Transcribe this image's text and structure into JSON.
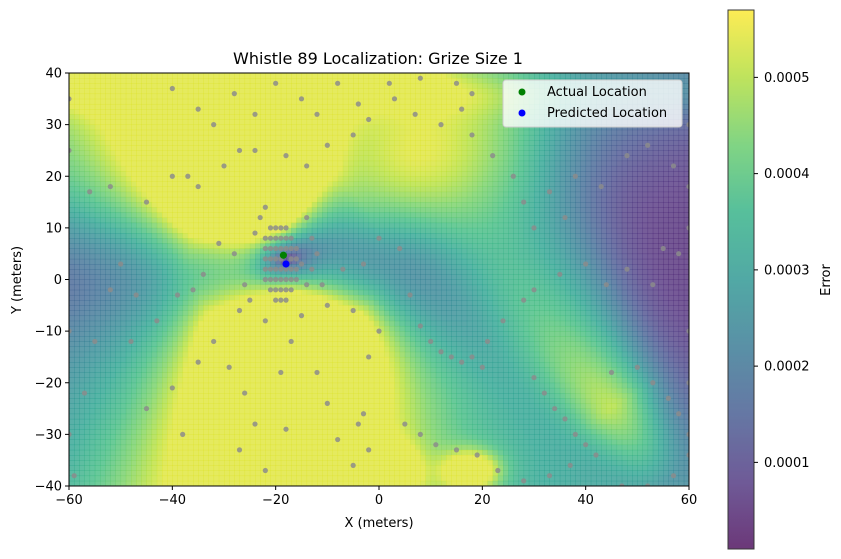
{
  "chart_data": {
    "type": "heatmap",
    "title": "Whistle 89 Localization: Grize Size 1",
    "xlabel": "X (meters)",
    "ylabel": "Y (meters)",
    "xlim": [
      -60,
      60
    ],
    "ylim": [
      -40,
      40
    ],
    "x_ticks": [
      -60,
      -40,
      -20,
      0,
      20,
      40,
      60
    ],
    "y_ticks": [
      -40,
      -30,
      -20,
      -10,
      0,
      10,
      20,
      30,
      40
    ],
    "colorbar": {
      "label": "Error",
      "range": [
        1e-05,
        0.00057
      ],
      "ticks": [
        0.0001,
        0.0002,
        0.0003,
        0.0004,
        0.0005
      ],
      "tick_labels": [
        "0.0001",
        "0.0002",
        "0.0003",
        "0.0004",
        "0.0005"
      ],
      "colormap": "viridis"
    },
    "legend": {
      "placement": "top-right",
      "entries": [
        "Actual Location",
        "Predicted Location"
      ]
    },
    "series": [
      {
        "name": "Actual Location",
        "color": "#008000",
        "points": [
          {
            "x": -18.5,
            "y": 4.7
          }
        ]
      },
      {
        "name": "Predicted Location",
        "color": "#0000ff",
        "points": [
          {
            "x": -18.0,
            "y": 3.0
          }
        ]
      }
    ],
    "hydrophones": {
      "color": "#8c8c8c",
      "points": [
        [
          -22,
          8
        ],
        [
          -21,
          8
        ],
        [
          -20,
          8
        ],
        [
          -19,
          8
        ],
        [
          -18,
          8
        ],
        [
          -17,
          8
        ],
        [
          -22,
          6
        ],
        [
          -21,
          6
        ],
        [
          -20,
          6
        ],
        [
          -19,
          6
        ],
        [
          -18,
          6
        ],
        [
          -17,
          6
        ],
        [
          -16,
          6
        ],
        [
          -22,
          4
        ],
        [
          -21,
          4
        ],
        [
          -20,
          4
        ],
        [
          -19,
          4
        ],
        [
          -17,
          4
        ],
        [
          -16,
          4
        ],
        [
          -22,
          2
        ],
        [
          -21,
          2
        ],
        [
          -20,
          2
        ],
        [
          -19,
          2
        ],
        [
          -18,
          2
        ],
        [
          -17,
          2
        ],
        [
          -16,
          2
        ],
        [
          -22,
          0
        ],
        [
          -21,
          0
        ],
        [
          -20,
          0
        ],
        [
          -19,
          0
        ],
        [
          -18,
          0
        ],
        [
          -17,
          0
        ],
        [
          -16,
          0
        ],
        [
          -21,
          -2
        ],
        [
          -20,
          -2
        ],
        [
          -19,
          -2
        ],
        [
          -18,
          -2
        ],
        [
          -17,
          -2
        ],
        [
          -20,
          -4
        ],
        [
          -19,
          -4
        ],
        [
          -18,
          -4
        ],
        [
          -21,
          10
        ],
        [
          -20,
          10
        ],
        [
          -19,
          10
        ],
        [
          -18,
          10
        ],
        [
          -15,
          3
        ],
        [
          -14,
          -1
        ],
        [
          -13,
          2
        ],
        [
          -28,
          5
        ],
        [
          -26,
          -1
        ],
        [
          -25,
          -4
        ],
        [
          -27,
          -6
        ],
        [
          -24,
          9
        ],
        [
          -13,
          8
        ],
        [
          -12,
          5
        ],
        [
          -11,
          -1
        ],
        [
          -10,
          -5
        ],
        [
          -23,
          12
        ],
        [
          -22,
          14
        ],
        [
          -14,
          12
        ],
        [
          -15,
          -7
        ],
        [
          -22,
          -8
        ],
        [
          -34,
          1
        ],
        [
          -36,
          -2
        ],
        [
          -31,
          7
        ],
        [
          -39,
          -3
        ],
        [
          -43,
          -8
        ],
        [
          -47,
          -3
        ],
        [
          -50,
          3
        ],
        [
          -55,
          -12
        ],
        [
          -52,
          -2
        ],
        [
          -57,
          -22
        ],
        [
          -59,
          -38
        ],
        [
          -48,
          -12
        ],
        [
          -32,
          -12
        ],
        [
          -29,
          -17
        ],
        [
          -26,
          -22
        ],
        [
          -24,
          -28
        ],
        [
          -35,
          -16
        ],
        [
          -45,
          -25
        ],
        [
          -40,
          -21
        ],
        [
          -38,
          -30
        ],
        [
          -27,
          -33
        ],
        [
          -22,
          -37
        ],
        [
          -18,
          -29
        ],
        [
          -19,
          -18
        ],
        [
          -17,
          -12
        ],
        [
          -12,
          -18
        ],
        [
          -10,
          -24
        ],
        [
          -8,
          -31
        ],
        [
          -5,
          -36
        ],
        [
          -3,
          -26
        ],
        [
          -2,
          -15
        ],
        [
          0,
          -10
        ],
        [
          -5,
          -6
        ],
        [
          -7,
          2
        ],
        [
          -3,
          3
        ],
        [
          0,
          8
        ],
        [
          4,
          6
        ],
        [
          6,
          -3
        ],
        [
          8,
          -9
        ],
        [
          10,
          -12
        ],
        [
          12,
          -14
        ],
        [
          14,
          -15
        ],
        [
          16,
          -16
        ],
        [
          18,
          -15
        ],
        [
          20,
          -17
        ],
        [
          21,
          -12
        ],
        [
          24,
          -8
        ],
        [
          28,
          -4
        ],
        [
          30,
          -2
        ],
        [
          35,
          1
        ],
        [
          40,
          3
        ],
        [
          44,
          -1
        ],
        [
          48,
          2
        ],
        [
          53,
          -1
        ],
        [
          55,
          6
        ],
        [
          30,
          -19
        ],
        [
          32,
          -22
        ],
        [
          34,
          -25
        ],
        [
          36,
          -27
        ],
        [
          38,
          -30
        ],
        [
          40,
          -32
        ],
        [
          42,
          -34
        ],
        [
          37,
          -36
        ],
        [
          33,
          -38
        ],
        [
          28,
          -39
        ],
        [
          23,
          -37
        ],
        [
          19,
          -34
        ],
        [
          15,
          -33
        ],
        [
          11,
          -32
        ],
        [
          8,
          -30
        ],
        [
          5,
          -28
        ],
        [
          -4,
          -28
        ],
        [
          -2,
          -33
        ],
        [
          45,
          -18
        ],
        [
          50,
          -17
        ],
        [
          53,
          -20
        ],
        [
          56,
          -23
        ],
        [
          58,
          -26
        ],
        [
          60,
          -30
        ],
        [
          60,
          -34
        ],
        [
          57,
          -38
        ],
        [
          52,
          -40
        ],
        [
          47,
          -40
        ],
        [
          -45,
          15
        ],
        [
          -52,
          18
        ],
        [
          -56,
          17
        ],
        [
          -40,
          20
        ],
        [
          -37,
          20
        ],
        [
          -35,
          18
        ],
        [
          -30,
          22
        ],
        [
          -27,
          25
        ],
        [
          -24,
          25
        ],
        [
          -18,
          24
        ],
        [
          -14,
          22
        ],
        [
          -10,
          26
        ],
        [
          -5,
          28
        ],
        [
          -2,
          31
        ],
        [
          3,
          35
        ],
        [
          7,
          32
        ],
        [
          12,
          30
        ],
        [
          16,
          33
        ],
        [
          18,
          28
        ],
        [
          22,
          24
        ],
        [
          26,
          20
        ],
        [
          28,
          15
        ],
        [
          30,
          10
        ],
        [
          33,
          17
        ],
        [
          36,
          12
        ],
        [
          38,
          20
        ],
        [
          43,
          18
        ],
        [
          48,
          24
        ],
        [
          52,
          26
        ],
        [
          57,
          22
        ],
        [
          60,
          18
        ],
        [
          60,
          10
        ],
        [
          58,
          5
        ],
        [
          -40,
          37
        ],
        [
          -35,
          33
        ],
        [
          -32,
          30
        ],
        [
          -28,
          36
        ],
        [
          -24,
          32
        ],
        [
          -20,
          38
        ],
        [
          -15,
          35
        ],
        [
          -12,
          32
        ],
        [
          -8,
          38
        ],
        [
          -4,
          34
        ],
        [
          2,
          38
        ],
        [
          8,
          39
        ],
        [
          15,
          38
        ],
        [
          18,
          36
        ],
        [
          -60,
          -10
        ],
        [
          -60,
          -30
        ],
        [
          60,
          -10
        ],
        [
          60,
          -20
        ],
        [
          -60,
          25
        ],
        [
          -60,
          35
        ],
        [
          60,
          30
        ]
      ]
    }
  }
}
